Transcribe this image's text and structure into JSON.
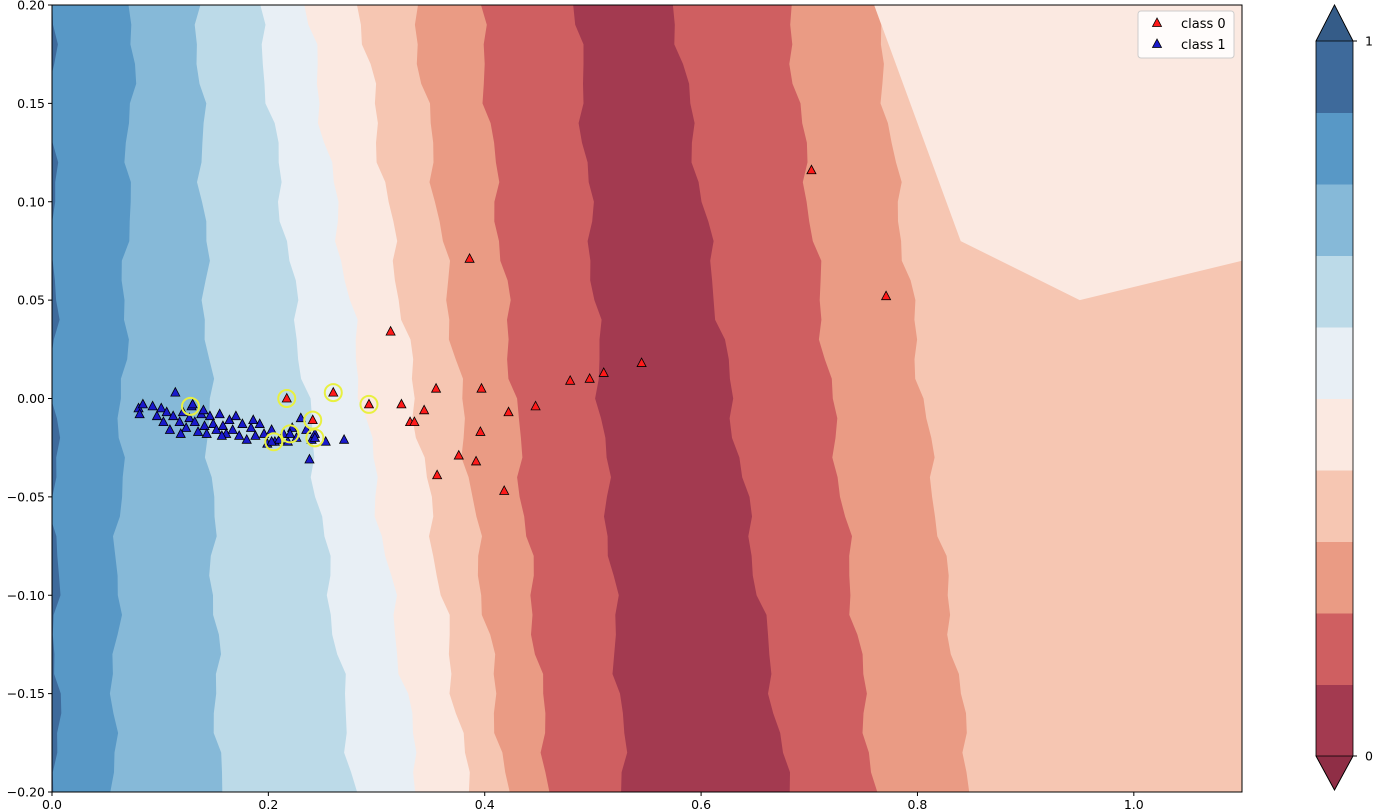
{
  "chart_data": {
    "type": "scatter",
    "title": "",
    "xlabel": "",
    "ylabel": "",
    "xlim": [
      0.0,
      1.1
    ],
    "ylim": [
      -0.2,
      0.2
    ],
    "grid": false,
    "legend_placement": "top-right",
    "x_ticks": [
      "0.0",
      "0.2",
      "0.4",
      "0.6",
      "0.8",
      "1.0"
    ],
    "y_ticks": [
      "−0.20",
      "−0.15",
      "−0.10",
      "−0.05",
      "0.00",
      "0.05",
      "0.10",
      "0.15",
      "0.20"
    ],
    "background": {
      "type": "filled-contour",
      "levels": 10,
      "colors": [
        "#a33a50",
        "#cf5f61",
        "#ea9b84",
        "#f6c6b2",
        "#fbe9e1",
        "#e8eff5",
        "#bcdae8",
        "#86b9d8",
        "#5898c6",
        "#3e6a9b"
      ],
      "boundary_top_x": [
        0.0,
        0.075,
        0.135,
        0.19,
        0.235,
        0.285,
        0.335,
        0.395,
        0.485,
        0.575,
        0.68,
        0.76
      ],
      "boundary_bottom_x": [
        0.005,
        0.055,
        0.155,
        0.28,
        0.34,
        0.385,
        0.42,
        0.46,
        0.53,
        0.68,
        0.76,
        0.85
      ]
    },
    "colorbar": {
      "tick_labels": [
        "0",
        "1"
      ],
      "colors_bottom_to_top": [
        "#a33a50",
        "#cf5f61",
        "#ea9b84",
        "#f6c6b2",
        "#fbe9e1",
        "#e8eff5",
        "#bcdae8",
        "#86b9d8",
        "#5898c6",
        "#3e6a9b"
      ],
      "extend_low_color": "#8f2e46",
      "extend_high_color": "#355c88"
    },
    "series": [
      {
        "name": "class 0",
        "marker": "triangle",
        "color": "#ff1a1a",
        "points": [
          [
            0.386,
            0.071
          ],
          [
            0.313,
            0.034
          ],
          [
            0.355,
            0.005
          ],
          [
            0.397,
            0.005
          ],
          [
            0.323,
            -0.003
          ],
          [
            0.344,
            -0.006
          ],
          [
            0.331,
            -0.012
          ],
          [
            0.335,
            -0.012
          ],
          [
            0.396,
            -0.017
          ],
          [
            0.422,
            -0.007
          ],
          [
            0.447,
            -0.004
          ],
          [
            0.376,
            -0.029
          ],
          [
            0.392,
            -0.032
          ],
          [
            0.356,
            -0.039
          ],
          [
            0.418,
            -0.047
          ],
          [
            0.479,
            0.009
          ],
          [
            0.497,
            0.01
          ],
          [
            0.51,
            0.013
          ],
          [
            0.545,
            0.018
          ],
          [
            0.702,
            0.116
          ],
          [
            0.771,
            0.052
          ],
          [
            0.217,
            0.0
          ],
          [
            0.26,
            0.003
          ],
          [
            0.293,
            -0.003
          ],
          [
            0.241,
            -0.011
          ]
        ]
      },
      {
        "name": "class 1",
        "marker": "triangle",
        "color": "#1a1acc",
        "points": [
          [
            0.08,
            -0.005
          ],
          [
            0.081,
            -0.008
          ],
          [
            0.084,
            -0.003
          ],
          [
            0.093,
            -0.004
          ],
          [
            0.097,
            -0.009
          ],
          [
            0.101,
            -0.005
          ],
          [
            0.103,
            -0.012
          ],
          [
            0.106,
            -0.007
          ],
          [
            0.109,
            -0.016
          ],
          [
            0.112,
            -0.009
          ],
          [
            0.114,
            0.003
          ],
          [
            0.118,
            -0.012
          ],
          [
            0.121,
            -0.007
          ],
          [
            0.124,
            -0.015
          ],
          [
            0.127,
            -0.01
          ],
          [
            0.129,
            -0.004
          ],
          [
            0.132,
            -0.012
          ],
          [
            0.135,
            -0.017
          ],
          [
            0.138,
            -0.008
          ],
          [
            0.141,
            -0.014
          ],
          [
            0.143,
            -0.018
          ],
          [
            0.146,
            -0.009
          ],
          [
            0.149,
            -0.013
          ],
          [
            0.152,
            -0.016
          ],
          [
            0.155,
            -0.008
          ],
          [
            0.158,
            -0.014
          ],
          [
            0.161,
            -0.018
          ],
          [
            0.164,
            -0.011
          ],
          [
            0.167,
            -0.016
          ],
          [
            0.17,
            -0.009
          ],
          [
            0.173,
            -0.019
          ],
          [
            0.176,
            -0.013
          ],
          [
            0.18,
            -0.021
          ],
          [
            0.184,
            -0.015
          ],
          [
            0.188,
            -0.019
          ],
          [
            0.192,
            -0.013
          ],
          [
            0.196,
            -0.018
          ],
          [
            0.199,
            -0.023
          ],
          [
            0.203,
            -0.016
          ],
          [
            0.206,
            -0.022
          ],
          [
            0.21,
            -0.021
          ],
          [
            0.214,
            -0.018
          ],
          [
            0.218,
            -0.022
          ],
          [
            0.222,
            -0.015
          ],
          [
            0.226,
            -0.02
          ],
          [
            0.23,
            -0.01
          ],
          [
            0.235,
            -0.016
          ],
          [
            0.24,
            -0.021
          ],
          [
            0.238,
            -0.031
          ],
          [
            0.243,
            -0.018
          ],
          [
            0.253,
            -0.022
          ],
          [
            0.27,
            -0.021
          ],
          [
            0.13,
            -0.003
          ],
          [
            0.119,
            -0.018
          ],
          [
            0.157,
            -0.019
          ],
          [
            0.14,
            -0.006
          ],
          [
            0.186,
            -0.011
          ],
          [
            0.203,
            -0.022
          ],
          [
            0.22,
            -0.018
          ],
          [
            0.243,
            -0.02
          ]
        ]
      }
    ],
    "highlighted_points": [
      [
        0.128,
        -0.004
      ],
      [
        0.217,
        0.0
      ],
      [
        0.26,
        0.003
      ],
      [
        0.293,
        -0.003
      ],
      [
        0.241,
        -0.011
      ],
      [
        0.22,
        -0.018
      ],
      [
        0.205,
        -0.022
      ],
      [
        0.243,
        -0.02
      ]
    ],
    "highlight_color": "#e8f040"
  }
}
